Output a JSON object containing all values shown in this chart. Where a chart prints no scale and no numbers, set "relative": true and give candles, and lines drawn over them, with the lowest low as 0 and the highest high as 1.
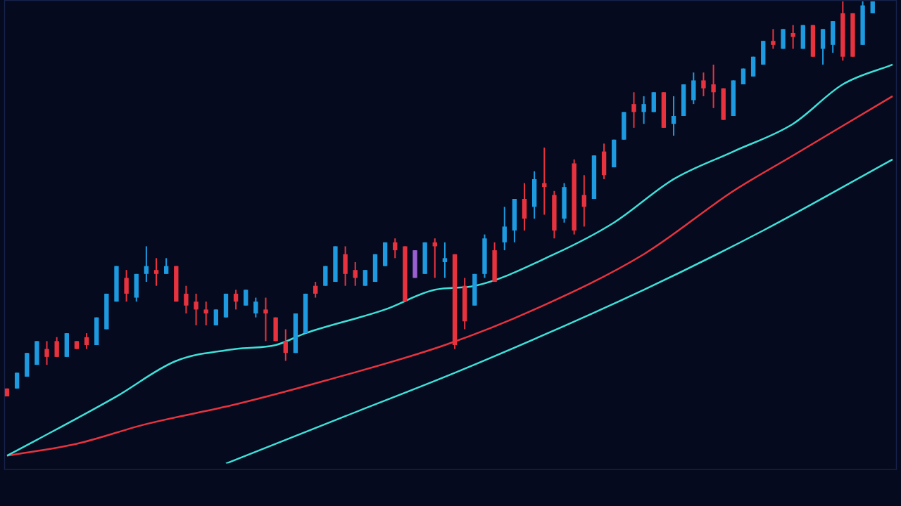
{
  "chart_data": {
    "type": "candlestick",
    "relative": true,
    "grid": false,
    "legend": false,
    "categories": [
      null,
      null,
      null,
      null,
      null,
      null,
      null,
      null,
      null,
      null,
      null,
      null,
      null,
      null,
      null,
      null,
      null,
      null,
      null,
      null,
      null,
      null,
      null,
      null,
      null,
      null,
      null,
      null,
      null,
      null,
      null,
      null,
      null,
      null,
      null,
      null,
      null,
      null,
      null,
      null,
      null,
      null,
      null,
      null,
      null,
      null,
      null,
      null,
      null,
      null,
      null,
      null,
      null,
      null,
      null,
      null,
      null,
      null,
      null,
      null,
      null,
      null,
      null,
      null,
      null,
      null,
      null,
      null,
      null,
      null,
      null,
      null,
      null,
      null,
      null,
      null,
      null,
      null,
      null,
      null,
      null,
      null,
      null,
      null,
      null,
      null,
      null,
      null,
      null,
      null
    ],
    "ohlc": [
      [
        0.02,
        0.02,
        0,
        0
      ],
      [
        0.02,
        0.06,
        0.02,
        0.06
      ],
      [
        0.05,
        0.11,
        0.05,
        0.11
      ],
      [
        0.08,
        0.14,
        0.08,
        0.14
      ],
      [
        0.12,
        0.14,
        0.08,
        0.1
      ],
      [
        0.14,
        0.15,
        0.1,
        0.1
      ],
      [
        0.1,
        0.16,
        0.1,
        0.16
      ],
      [
        0.14,
        0.14,
        0.12,
        0.12
      ],
      [
        0.15,
        0.16,
        0.12,
        0.13
      ],
      [
        0.13,
        0.2,
        0.13,
        0.2
      ],
      [
        0.17,
        0.26,
        0.17,
        0.26
      ],
      [
        0.24,
        0.33,
        0.24,
        0.33
      ],
      [
        0.3,
        0.32,
        0.24,
        0.26
      ],
      [
        0.25,
        0.31,
        0.24,
        0.31
      ],
      [
        0.31,
        0.38,
        0.29,
        0.33
      ],
      [
        0.32,
        0.35,
        0.28,
        0.31
      ],
      [
        0.31,
        0.35,
        0.31,
        0.33
      ],
      [
        0.33,
        0.33,
        0.24,
        0.24
      ],
      [
        0.26,
        0.28,
        0.21,
        0.23
      ],
      [
        0.24,
        0.26,
        0.18,
        0.22
      ],
      [
        0.22,
        0.24,
        0.18,
        0.21
      ],
      [
        0.18,
        0.22,
        0.18,
        0.22
      ],
      [
        0.2,
        0.26,
        0.2,
        0.26
      ],
      [
        0.26,
        0.27,
        0.22,
        0.24
      ],
      [
        0.23,
        0.27,
        0.23,
        0.27
      ],
      [
        0.21,
        0.25,
        0.2,
        0.24
      ],
      [
        0.22,
        0.25,
        0.14,
        0.21
      ],
      [
        0.2,
        0.2,
        0.14,
        0.14
      ],
      [
        0.14,
        0.17,
        0.09,
        0.11
      ],
      [
        0.11,
        0.21,
        0.11,
        0.21
      ],
      [
        0.16,
        0.26,
        0.16,
        0.26
      ],
      [
        0.28,
        0.29,
        0.25,
        0.26
      ],
      [
        0.28,
        0.33,
        0.28,
        0.33
      ],
      [
        0.29,
        0.38,
        0.29,
        0.38
      ],
      [
        0.36,
        0.38,
        0.28,
        0.31
      ],
      [
        0.32,
        0.34,
        0.28,
        0.3
      ],
      [
        0.28,
        0.32,
        0.28,
        0.32
      ],
      [
        0.29,
        0.36,
        0.29,
        0.36
      ],
      [
        0.33,
        0.39,
        0.33,
        0.39
      ],
      [
        0.39,
        0.4,
        0.35,
        0.37
      ],
      [
        0.38,
        0.38,
        0.24,
        0.24
      ],
      [
        0.37,
        0.37,
        0.3,
        0.3
      ],
      [
        0.31,
        0.39,
        0.31,
        0.39
      ],
      [
        0.39,
        0.4,
        0.3,
        0.38
      ],
      [
        0.34,
        0.39,
        0.3,
        0.35
      ],
      [
        0.36,
        0.36,
        0.12,
        0.13
      ],
      [
        0.28,
        0.3,
        0.17,
        0.19
      ],
      [
        0.23,
        0.31,
        0.23,
        0.31
      ],
      [
        0.31,
        0.41,
        0.3,
        0.4
      ],
      [
        0.37,
        0.39,
        0.29,
        0.29
      ],
      [
        0.39,
        0.48,
        0.37,
        0.43
      ],
      [
        0.42,
        0.5,
        0.39,
        0.5
      ],
      [
        0.5,
        0.54,
        0.42,
        0.45
      ],
      [
        0.48,
        0.57,
        0.45,
        0.55
      ],
      [
        0.54,
        0.63,
        0.46,
        0.53
      ],
      [
        0.51,
        0.52,
        0.4,
        0.42
      ],
      [
        0.45,
        0.54,
        0.44,
        0.53
      ],
      [
        0.59,
        0.6,
        0.41,
        0.42
      ],
      [
        0.51,
        0.56,
        0.43,
        0.48
      ],
      [
        0.5,
        0.61,
        0.5,
        0.61
      ],
      [
        0.62,
        0.64,
        0.55,
        0.56
      ],
      [
        0.58,
        0.65,
        0.58,
        0.65
      ],
      [
        0.65,
        0.72,
        0.65,
        0.72
      ],
      [
        0.74,
        0.77,
        0.68,
        0.72
      ],
      [
        0.72,
        0.76,
        0.69,
        0.74
      ],
      [
        0.72,
        0.77,
        0.72,
        0.77
      ],
      [
        0.77,
        0.77,
        0.68,
        0.68
      ],
      [
        0.69,
        0.76,
        0.66,
        0.71
      ],
      [
        0.71,
        0.79,
        0.71,
        0.79
      ],
      [
        0.75,
        0.82,
        0.74,
        0.8
      ],
      [
        0.8,
        0.82,
        0.76,
        0.78
      ],
      [
        0.79,
        0.84,
        0.73,
        0.77
      ],
      [
        0.78,
        0.78,
        0.7,
        0.7
      ],
      [
        0.71,
        0.8,
        0.71,
        0.8
      ],
      [
        0.79,
        0.83,
        0.79,
        0.83
      ],
      [
        0.81,
        0.86,
        0.81,
        0.86
      ],
      [
        0.84,
        0.9,
        0.84,
        0.9
      ],
      [
        0.9,
        0.93,
        0.88,
        0.89
      ],
      [
        0.88,
        0.93,
        0.88,
        0.93
      ],
      [
        0.92,
        0.94,
        0.88,
        0.91
      ],
      [
        0.88,
        0.94,
        0.88,
        0.94
      ],
      [
        0.94,
        0.94,
        0.86,
        0.86
      ],
      [
        0.88,
        0.93,
        0.84,
        0.93
      ],
      [
        0.89,
        0.95,
        0.87,
        0.95
      ],
      [
        0.97,
        1,
        0.85,
        0.86
      ],
      [
        0.97,
        0.97,
        0.86,
        0.86
      ],
      [
        0.89,
        1,
        0.89,
        0.99
      ],
      [
        0.97,
        1,
        0.97,
        1
      ],
      null,
      null
    ],
    "colors": [
      "#e8333f",
      "#1e9be0",
      "#1e9be0",
      "#1e9be0",
      "#e8333f",
      "#e8333f",
      "#1e9be0",
      "#e8333f",
      "#e8333f",
      "#1e9be0",
      "#1e9be0",
      "#1e9be0",
      "#e8333f",
      "#1e9be0",
      "#1e9be0",
      "#e8333f",
      "#1e9be0",
      "#e8333f",
      "#e8333f",
      "#e8333f",
      "#e8333f",
      "#1e9be0",
      "#1e9be0",
      "#e8333f",
      "#1e9be0",
      "#1e9be0",
      "#e8333f",
      "#e8333f",
      "#e8333f",
      "#1e9be0",
      "#1e9be0",
      "#e8333f",
      "#1e9be0",
      "#1e9be0",
      "#e8333f",
      "#e8333f",
      "#1e9be0",
      "#1e9be0",
      "#1e9be0",
      "#e8333f",
      "#e8333f",
      "#9a5fd0",
      "#1e9be0",
      "#e8333f",
      "#1e9be0",
      "#e8333f",
      "#e8333f",
      "#1e9be0",
      "#1e9be0",
      "#e8333f",
      "#1e9be0",
      "#1e9be0",
      "#e8333f",
      "#1e9be0",
      "#e8333f",
      "#e8333f",
      "#1e9be0",
      "#e8333f",
      "#e8333f",
      "#1e9be0",
      "#e8333f",
      "#1e9be0",
      "#1e9be0",
      "#e8333f",
      "#1e9be0",
      "#1e9be0",
      "#e8333f",
      "#1e9be0",
      "#1e9be0",
      "#1e9be0",
      "#e8333f",
      "#e8333f",
      "#e8333f",
      "#1e9be0",
      "#1e9be0",
      "#1e9be0",
      "#1e9be0",
      "#e8333f",
      "#1e9be0",
      "#e8333f",
      "#1e9be0",
      "#e8333f",
      "#1e9be0",
      "#1e9be0",
      "#e8333f",
      "#e8333f",
      "#1e9be0",
      "#1e9be0",
      null,
      null
    ],
    "series": [
      {
        "type": "line",
        "color": "#3ee0d8",
        "values": [
          -0.15,
          null,
          null,
          -0.11,
          null,
          null,
          null,
          null,
          null,
          null,
          null,
          0.0,
          null,
          null,
          null,
          null,
          null,
          0.09,
          null,
          null,
          null,
          null,
          null,
          0.12,
          null,
          null,
          null,
          0.13,
          null,
          null,
          0.16,
          null,
          null,
          null,
          null,
          null,
          null,
          null,
          0.22,
          null,
          null,
          null,
          null,
          0.27,
          null,
          null,
          null,
          0.28,
          null,
          null,
          null,
          null,
          null,
          null,
          null,
          0.36,
          null,
          null,
          null,
          null,
          null,
          0.44,
          null,
          null,
          null,
          null,
          null,
          0.55,
          null,
          null,
          null,
          null,
          null,
          0.62,
          null,
          null,
          null,
          null,
          null,
          0.69,
          null,
          null,
          null,
          null,
          0.79,
          null,
          null,
          null,
          null,
          0.84
        ]
      },
      {
        "type": "line",
        "color": "#e8333f",
        "values": [
          -0.15,
          null,
          null,
          null,
          null,
          null,
          null,
          -0.12,
          null,
          null,
          null,
          null,
          null,
          null,
          -0.07,
          null,
          null,
          null,
          null,
          null,
          null,
          null,
          null,
          -0.02,
          null,
          null,
          null,
          null,
          null,
          null,
          null,
          null,
          0.04,
          null,
          null,
          null,
          null,
          null,
          null,
          null,
          null,
          null,
          null,
          null,
          0.13,
          null,
          null,
          null,
          null,
          null,
          null,
          null,
          null,
          0.22,
          null,
          null,
          null,
          null,
          null,
          null,
          null,
          null,
          null,
          null,
          0.36,
          null,
          null,
          null,
          null,
          null,
          null,
          null,
          null,
          0.52,
          null,
          null,
          null,
          null,
          null,
          0.61,
          null,
          null,
          null,
          null,
          null,
          null,
          null,
          null,
          null,
          0.76
        ]
      },
      {
        "type": "line",
        "color": "#3ee0d8",
        "values": [
          null,
          null,
          null,
          null,
          null,
          null,
          null,
          null,
          null,
          null,
          null,
          null,
          null,
          null,
          null,
          null,
          null,
          null,
          null,
          null,
          null,
          null,
          -0.17,
          null,
          null,
          null,
          null,
          null,
          null,
          null,
          null,
          null,
          null,
          null,
          -0.05,
          null,
          null,
          null,
          null,
          null,
          null,
          null,
          null,
          null,
          null,
          null,
          0.07,
          null,
          null,
          null,
          null,
          null,
          null,
          null,
          null,
          null,
          null,
          null,
          null,
          null,
          null,
          null,
          null,
          null,
          0.27,
          null,
          null,
          null,
          null,
          null,
          null,
          null,
          null,
          null,
          null,
          null,
          0.42,
          null,
          null,
          null,
          null,
          null,
          null,
          null,
          null,
          null,
          null,
          null,
          null,
          0.6
        ]
      }
    ]
  }
}
